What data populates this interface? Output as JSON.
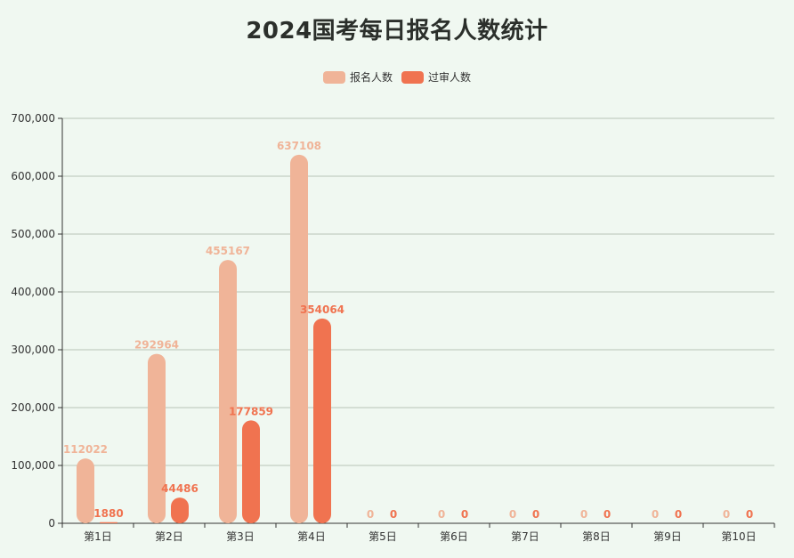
{
  "title": "2024国考每日报名人数统计",
  "legend": [
    {
      "label": "报名人数",
      "color": "#f0b498"
    },
    {
      "label": "过审人数",
      "color": "#f07350"
    }
  ],
  "colors": {
    "background": "#f0f8f1",
    "gridline": "#b8c4b8",
    "axis": "#333333",
    "series_registration": "#f0b498",
    "series_approved": "#f07350"
  },
  "chart_data": {
    "type": "bar",
    "title": "2024国考每日报名人数统计",
    "xlabel": "",
    "ylabel": "",
    "categories": [
      "第1日",
      "第2日",
      "第3日",
      "第4日",
      "第5日",
      "第6日",
      "第7日",
      "第8日",
      "第9日",
      "第10日"
    ],
    "series": [
      {
        "name": "报名人数",
        "color": "#f0b498",
        "values": [
          112022,
          292964,
          455167,
          637108,
          0,
          0,
          0,
          0,
          0,
          0
        ]
      },
      {
        "name": "过审人数",
        "color": "#f07350",
        "values": [
          1880,
          44486,
          177859,
          354064,
          0,
          0,
          0,
          0,
          0,
          0
        ]
      }
    ],
    "ylim": [
      0,
      700000
    ],
    "yticks": [
      "0",
      "100,000",
      "200,000",
      "300,000",
      "400,000",
      "500,000",
      "600,000",
      "700,000"
    ],
    "grid": true,
    "legend_position": "top-center",
    "data_labels": true
  }
}
